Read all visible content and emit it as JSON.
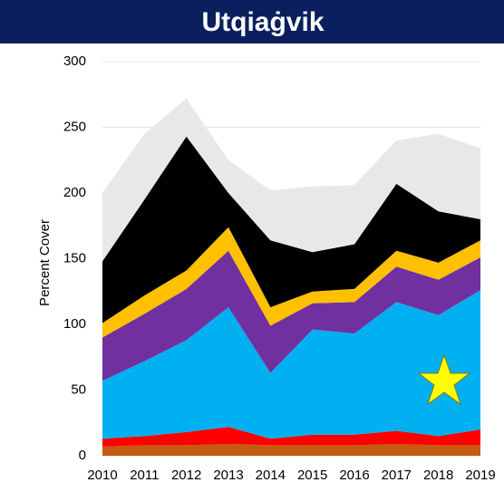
{
  "chart_data": {
    "type": "stacked_area",
    "title": "Utqiaġvik",
    "y_label": "Percent Cover",
    "categories": [
      "2010",
      "2011",
      "2012",
      "2013",
      "2014",
      "2015",
      "2016",
      "2017",
      "2018",
      "2019"
    ],
    "series": [
      {
        "color": "#c55a11",
        "values": [
          7,
          8,
          8,
          9,
          8,
          8,
          8,
          9,
          8,
          8
        ]
      },
      {
        "color": "#ff0000",
        "values": [
          6,
          7,
          10,
          13,
          5,
          8,
          8,
          10,
          7,
          12
        ]
      },
      {
        "color": "#00b0f0",
        "values": [
          44,
          57,
          70,
          91,
          50,
          80,
          77,
          98,
          92,
          106
        ]
      },
      {
        "color": "#7030a0",
        "values": [
          33,
          36,
          39,
          43,
          36,
          20,
          24,
          27,
          27,
          25
        ]
      },
      {
        "color": "#ffc000",
        "values": [
          11,
          14,
          14,
          18,
          14,
          9,
          10,
          12,
          13,
          13
        ]
      },
      {
        "color": "#000000",
        "values": [
          47,
          73,
          102,
          26,
          51,
          30,
          34,
          51,
          39,
          16
        ]
      },
      {
        "color": "#e8e8e8",
        "values": [
          52,
          50,
          29,
          25,
          38,
          50,
          45,
          33,
          59,
          54
        ]
      }
    ],
    "ylim": [
      0,
      300
    ],
    "yticks": [
      0,
      50,
      100,
      150,
      200,
      250,
      300
    ],
    "grid": true
  }
}
